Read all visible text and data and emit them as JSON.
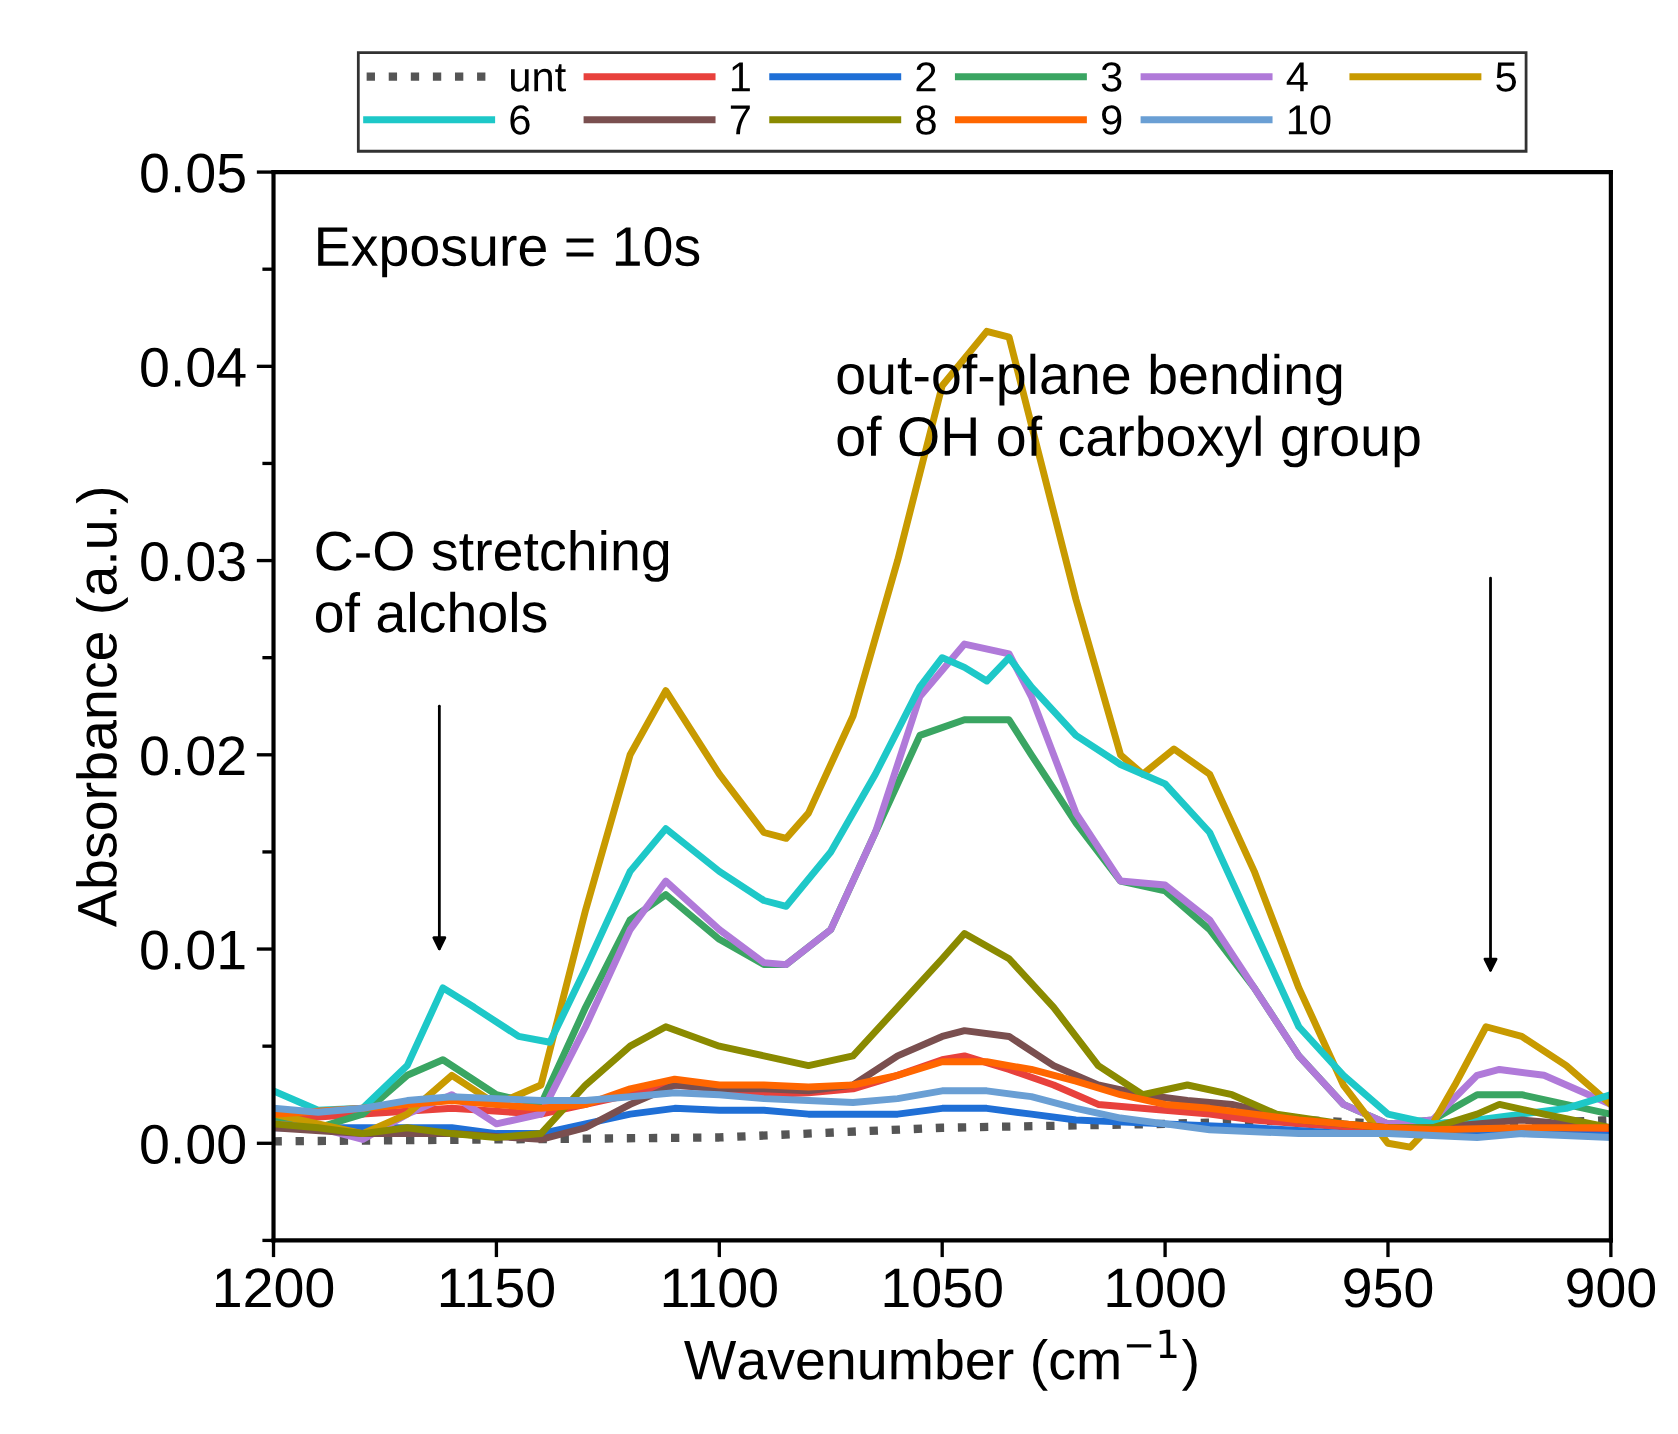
{
  "chart_data": {
    "type": "line",
    "xlabel": "Wavenumber (cm$^{−1}$)",
    "ylabel": "Absorbance (a.u.)",
    "xlim": [
      1200,
      900
    ],
    "xticks": [
      1200,
      1150,
      1100,
      1050,
      1000,
      950,
      900
    ],
    "ylim": [
      -0.005,
      0.05
    ],
    "yticks": [
      {
        "value": 0,
        "label": "0.00"
      },
      {
        "value": 0.01,
        "label": "0.01"
      },
      {
        "value": 0.02,
        "label": "0.02"
      },
      {
        "value": 0.03,
        "label": "0.03"
      },
      {
        "value": 0.04,
        "label": "0.04"
      },
      {
        "value": 0.05,
        "label": "0.05"
      }
    ],
    "grid": false,
    "legend": "top",
    "marker": "none",
    "annotations": [
      "Exposure = 10s",
      "C-O stretching\nof alchols",
      "out-of-plane bending\nof OH of carboxyl group"
    ],
    "series": [
      {
        "name": "unt",
        "color": "#555555",
        "line_style": "dotted",
        "x": [
          1200,
          1150,
          1100,
          1050,
          1000,
          970,
          950,
          920,
          900
        ],
        "values": [
          0.0001,
          0.0002,
          0.0003,
          0.0008,
          0.001,
          0.0012,
          0.001,
          0.001,
          0.0012
        ]
      },
      {
        "name": "1",
        "color": "#e8413c",
        "x": [
          1200,
          1180,
          1160,
          1140,
          1130,
          1120,
          1110,
          1100,
          1090,
          1080,
          1070,
          1060,
          1050,
          1045,
          1035,
          1025,
          1015,
          1000,
          990,
          980,
          970,
          950,
          930,
          900
        ],
        "values": [
          0.0012,
          0.0015,
          0.0018,
          0.0015,
          0.002,
          0.0025,
          0.003,
          0.0028,
          0.0025,
          0.0026,
          0.0028,
          0.0035,
          0.0043,
          0.0045,
          0.0038,
          0.003,
          0.002,
          0.0017,
          0.0015,
          0.0012,
          0.001,
          0.0007,
          0.0008,
          0.0006
        ]
      },
      {
        "name": "2",
        "color": "#1f6fd6",
        "x": [
          1200,
          1180,
          1160,
          1150,
          1140,
          1130,
          1120,
          1110,
          1100,
          1090,
          1080,
          1070,
          1060,
          1050,
          1040,
          1030,
          1020,
          1000,
          980,
          960,
          940,
          920,
          900
        ],
        "values": [
          0.0008,
          0.0008,
          0.0008,
          0.0005,
          0.0005,
          0.001,
          0.0015,
          0.0018,
          0.0017,
          0.0017,
          0.0015,
          0.0015,
          0.0015,
          0.0018,
          0.0018,
          0.0015,
          0.0012,
          0.001,
          0.0008,
          0.0005,
          0.0005,
          0.0005,
          0.0004
        ]
      },
      {
        "name": "3",
        "color": "#3aa562",
        "x": [
          1200,
          1190,
          1180,
          1170,
          1162,
          1150,
          1140,
          1130,
          1120,
          1112,
          1100,
          1090,
          1085,
          1075,
          1065,
          1055,
          1045,
          1035,
          1030,
          1020,
          1010,
          1000,
          990,
          980,
          970,
          960,
          950,
          940,
          930,
          920,
          900
        ],
        "values": [
          0.0012,
          0.0008,
          0.0015,
          0.0035,
          0.0043,
          0.0025,
          0.002,
          0.007,
          0.0115,
          0.0128,
          0.0105,
          0.0092,
          0.0092,
          0.011,
          0.016,
          0.021,
          0.0218,
          0.0218,
          0.02,
          0.0165,
          0.0135,
          0.013,
          0.011,
          0.008,
          0.0045,
          0.002,
          0.001,
          0.0012,
          0.0025,
          0.0025,
          0.0015
        ]
      },
      {
        "name": "4",
        "color": "#b07ad9",
        "x": [
          1200,
          1190,
          1180,
          1170,
          1160,
          1150,
          1140,
          1130,
          1120,
          1112,
          1100,
          1090,
          1085,
          1075,
          1065,
          1055,
          1045,
          1035,
          1030,
          1020,
          1010,
          1000,
          990,
          980,
          970,
          960,
          950,
          940,
          930,
          925,
          915,
          900
        ],
        "values": [
          0.001,
          0.0008,
          0.0002,
          0.0015,
          0.0025,
          0.001,
          0.0015,
          0.006,
          0.011,
          0.0135,
          0.011,
          0.0093,
          0.0092,
          0.011,
          0.016,
          0.023,
          0.0257,
          0.0252,
          0.023,
          0.017,
          0.0135,
          0.0133,
          0.0115,
          0.008,
          0.0045,
          0.002,
          0.001,
          0.0012,
          0.0035,
          0.0038,
          0.0035,
          0.002
        ]
      },
      {
        "name": "5",
        "color": "#c89a00",
        "x": [
          1200,
          1190,
          1180,
          1170,
          1160,
          1150,
          1140,
          1130,
          1120,
          1112,
          1100,
          1090,
          1085,
          1080,
          1070,
          1060,
          1050,
          1040,
          1035,
          1030,
          1020,
          1010,
          1005,
          998,
          990,
          980,
          970,
          960,
          950,
          945,
          940,
          935,
          928,
          920,
          910,
          900
        ],
        "values": [
          0.0015,
          0.001,
          0.0005,
          0.0015,
          0.0035,
          0.002,
          0.003,
          0.012,
          0.02,
          0.0233,
          0.019,
          0.016,
          0.0157,
          0.017,
          0.022,
          0.03,
          0.039,
          0.0418,
          0.0415,
          0.037,
          0.028,
          0.02,
          0.019,
          0.0203,
          0.019,
          0.014,
          0.008,
          0.003,
          0.0,
          -0.0002,
          0.001,
          0.003,
          0.006,
          0.0055,
          0.004,
          0.002
        ]
      },
      {
        "name": "6",
        "color": "#1ec8c8",
        "x": [
          1200,
          1190,
          1180,
          1170,
          1162,
          1155,
          1145,
          1138,
          1130,
          1120,
          1112,
          1100,
          1090,
          1085,
          1075,
          1065,
          1055,
          1050,
          1045,
          1040,
          1035,
          1030,
          1020,
          1010,
          1000,
          990,
          980,
          970,
          960,
          950,
          940,
          930,
          920,
          910,
          900
        ],
        "values": [
          0.0027,
          0.0017,
          0.0018,
          0.004,
          0.008,
          0.007,
          0.0055,
          0.0052,
          0.009,
          0.014,
          0.0162,
          0.014,
          0.0125,
          0.0122,
          0.015,
          0.019,
          0.0235,
          0.025,
          0.0245,
          0.0238,
          0.025,
          0.0235,
          0.021,
          0.0195,
          0.0185,
          0.016,
          0.011,
          0.006,
          0.0035,
          0.0015,
          0.001,
          0.0012,
          0.0015,
          0.0018,
          0.0025
        ]
      },
      {
        "name": "7",
        "color": "#7a4f4f",
        "x": [
          1200,
          1180,
          1160,
          1140,
          1130,
          1120,
          1110,
          1100,
          1090,
          1080,
          1070,
          1060,
          1050,
          1045,
          1035,
          1025,
          1015,
          1005,
          995,
          985,
          970,
          960,
          950,
          940,
          930,
          920,
          900
        ],
        "values": [
          0.0008,
          0.0005,
          0.0005,
          0.0002,
          0.0008,
          0.002,
          0.003,
          0.0028,
          0.0028,
          0.0027,
          0.003,
          0.0045,
          0.0055,
          0.0058,
          0.0055,
          0.004,
          0.003,
          0.0025,
          0.0022,
          0.002,
          0.0012,
          0.001,
          0.0008,
          0.0008,
          0.001,
          0.0012,
          0.0008
        ]
      },
      {
        "name": "8",
        "color": "#8a8a00",
        "x": [
          1200,
          1190,
          1180,
          1170,
          1160,
          1150,
          1140,
          1130,
          1120,
          1112,
          1100,
          1090,
          1080,
          1070,
          1060,
          1050,
          1045,
          1035,
          1025,
          1015,
          1005,
          995,
          985,
          975,
          960,
          950,
          940,
          930,
          925,
          915,
          900
        ],
        "values": [
          0.001,
          0.0008,
          0.0005,
          0.0008,
          0.0005,
          0.0003,
          0.0005,
          0.003,
          0.005,
          0.006,
          0.005,
          0.0045,
          0.004,
          0.0045,
          0.007,
          0.0095,
          0.0108,
          0.0095,
          0.007,
          0.004,
          0.0025,
          0.003,
          0.0025,
          0.0015,
          0.001,
          0.0008,
          0.0008,
          0.0015,
          0.002,
          0.0015,
          0.0008
        ]
      },
      {
        "name": "9",
        "color": "#ff6600",
        "x": [
          1200,
          1180,
          1170,
          1160,
          1150,
          1140,
          1130,
          1120,
          1110,
          1100,
          1090,
          1080,
          1070,
          1060,
          1050,
          1040,
          1030,
          1020,
          1010,
          1000,
          990,
          980,
          970,
          960,
          950,
          940,
          920,
          900
        ],
        "values": [
          0.0015,
          0.0018,
          0.002,
          0.0022,
          0.002,
          0.0018,
          0.002,
          0.0028,
          0.0033,
          0.003,
          0.003,
          0.0029,
          0.003,
          0.0035,
          0.0042,
          0.0042,
          0.0038,
          0.0032,
          0.0025,
          0.002,
          0.0018,
          0.0015,
          0.0012,
          0.001,
          0.0008,
          0.0007,
          0.0008,
          0.0008
        ]
      },
      {
        "name": "10",
        "color": "#6a9fd4",
        "x": [
          1200,
          1190,
          1180,
          1170,
          1160,
          1150,
          1140,
          1130,
          1120,
          1110,
          1100,
          1090,
          1080,
          1070,
          1060,
          1050,
          1040,
          1030,
          1020,
          1010,
          1000,
          990,
          970,
          950,
          930,
          920,
          900
        ],
        "values": [
          0.0018,
          0.0016,
          0.0018,
          0.0022,
          0.0024,
          0.0023,
          0.0022,
          0.0022,
          0.0024,
          0.0026,
          0.0025,
          0.0023,
          0.0022,
          0.0021,
          0.0023,
          0.0027,
          0.0027,
          0.0024,
          0.0018,
          0.0013,
          0.001,
          0.0007,
          0.0005,
          0.0005,
          0.0003,
          0.0005,
          0.0003
        ]
      }
    ]
  }
}
